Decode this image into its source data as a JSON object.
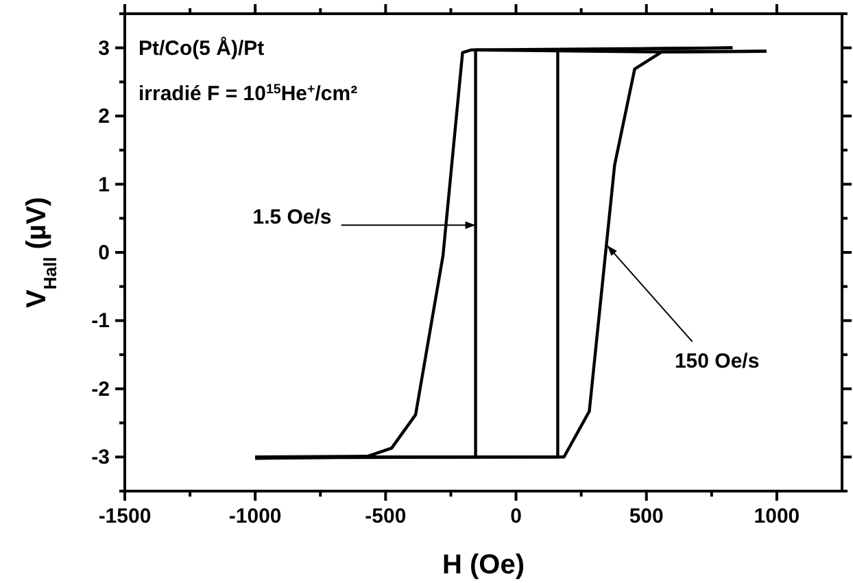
{
  "chart_data": {
    "type": "line",
    "xlabel": "H (Oe)",
    "ylabel": "V$_{Hall}$ (µV)",
    "xlim": [
      -1500,
      1250
    ],
    "ylim": [
      -3.5,
      3.5
    ],
    "xticks": [
      -1500,
      {
        "value": -1250,
        "label": null
      },
      -1000,
      {
        "value": -750,
        "label": null
      },
      -500,
      {
        "value": -250,
        "label": null
      },
      0,
      {
        "value": 250,
        "label": null
      },
      500,
      {
        "value": 750,
        "label": null
      },
      1000
    ],
    "yticks": [
      {
        "value": -3.5,
        "label": null
      },
      -3,
      {
        "value": -2.5,
        "label": null
      },
      -2,
      {
        "value": -1.5,
        "label": null
      },
      -1,
      {
        "value": -0.5,
        "label": null
      },
      0,
      {
        "value": 0.5,
        "label": null
      },
      1,
      {
        "value": 1.5,
        "label": null
      },
      2,
      {
        "value": 2.5,
        "label": null
      },
      3,
      {
        "value": 3.5,
        "label": null
      }
    ],
    "grid": false,
    "line_style": "solid",
    "series": [
      {
        "color": "#000000",
        "x": [
          -1000,
          -570,
          -477,
          -385,
          -280,
          -205,
          -170,
          559,
          960
        ],
        "values": [
          -3.0,
          -2.99,
          -2.87,
          -2.38,
          -0.05,
          2.93,
          2.97,
          2.94,
          2.95
        ]
      },
      {
        "color": "#000000",
        "x": [
          -1000,
          -570,
          184,
          281,
          378,
          455,
          559,
          960
        ],
        "values": [
          -3.02,
          -3.0,
          -3.0,
          -2.33,
          1.28,
          2.69,
          2.94,
          2.95
        ]
      },
      {
        "color": "#000000",
        "x": [
          -1000,
          -155,
          -155,
          830
        ],
        "values": [
          -3.0,
          -3.0,
          2.97,
          3.0
        ]
      },
      {
        "color": "#000000",
        "x": [
          -1000,
          160,
          160,
          830
        ],
        "values": [
          -3.01,
          -3.0,
          2.97,
          3.0
        ]
      }
    ],
    "annotations": [
      "Pt/Co(5 Å)/Pt",
      "irradié F = 10$^{15}$He$^{+}$/cm²",
      {
        "text": "1.5 Oe/s",
        "x": -155,
        "y": 0.4
      },
      {
        "text": "150 Oe/s",
        "x": 350,
        "y": 0.1
      }
    ]
  }
}
